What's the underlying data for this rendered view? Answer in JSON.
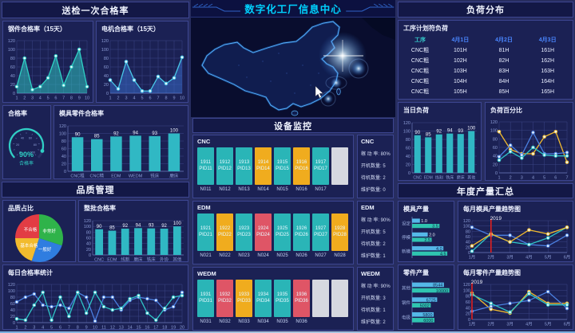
{
  "title": "数字化工厂信息中心",
  "left": {
    "qc_header": "送检一次合格率",
    "steel_title": "钢件合格率（15天）",
    "motor_title": "电机合格率（15天）",
    "gauge_panel_title": "合格率",
    "gauge_value": "90%",
    "gauge_label": "合格率",
    "mould_parts_title": "模具零件合格率",
    "quality_header": "品质管理",
    "pie_title": "品质占比",
    "batch_title": "整批合格率",
    "daily_title": "每日合格率统计"
  },
  "center": {
    "monitor_header": "设备监控",
    "groups": [
      {
        "name": "CNC",
        "machines": [
          {
            "code": "1911",
            "pid": "PID11",
            "node": "N011",
            "status": "run"
          },
          {
            "code": "1912",
            "pid": "PID12",
            "node": "N012",
            "status": "run"
          },
          {
            "code": "1913",
            "pid": "PID13",
            "node": "N013",
            "status": "run"
          },
          {
            "code": "1914",
            "pid": "PID14",
            "node": "N014",
            "status": "standby"
          },
          {
            "code": "1915",
            "pid": "PID15",
            "node": "N015",
            "status": "run"
          },
          {
            "code": "1916",
            "pid": "PID16",
            "node": "N016",
            "status": "standby"
          },
          {
            "code": "1917",
            "pid": "PID17",
            "node": "N017",
            "status": "run"
          },
          {
            "code": "",
            "pid": "",
            "node": "",
            "status": "empty"
          }
        ],
        "stats": {
          "rate_label": "稼 动 率",
          "rate": "80%",
          "on_label": "开机数量",
          "on": "5",
          "standby_label": "待机数量",
          "standby": "2",
          "maint_label": "维护数量",
          "maint": "0"
        }
      },
      {
        "name": "EDM",
        "machines": [
          {
            "code": "1921",
            "pid": "PID21",
            "node": "N021",
            "status": "run"
          },
          {
            "code": "1922",
            "pid": "PID22",
            "node": "N022",
            "status": "standby"
          },
          {
            "code": "1923",
            "pid": "PID23",
            "node": "N023",
            "status": "run"
          },
          {
            "code": "1924",
            "pid": "PID24",
            "node": "N024",
            "status": "fault"
          },
          {
            "code": "1925",
            "pid": "PID25",
            "node": "N025",
            "status": "run"
          },
          {
            "code": "1926",
            "pid": "PID26",
            "node": "N026",
            "status": "run"
          },
          {
            "code": "1927",
            "pid": "PID27",
            "node": "N027",
            "status": "run"
          },
          {
            "code": "1928",
            "pid": "PID28",
            "node": "N028",
            "status": "standby"
          }
        ],
        "stats": {
          "rate_label": "稼 动 率",
          "rate": "90%",
          "on_label": "开机数量",
          "on": "5",
          "standby_label": "待机数量",
          "standby": "2",
          "maint_label": "维护数量",
          "maint": "1"
        }
      },
      {
        "name": "WEDM",
        "machines": [
          {
            "code": "1931",
            "pid": "PID31",
            "node": "N031",
            "status": "run"
          },
          {
            "code": "1932",
            "pid": "PID32",
            "node": "N032",
            "status": "fault"
          },
          {
            "code": "1933",
            "pid": "PID33",
            "node": "N033",
            "status": "standby"
          },
          {
            "code": "1934",
            "pid": "PID34",
            "node": "N034",
            "status": "run"
          },
          {
            "code": "1935",
            "pid": "PID35",
            "node": "N035",
            "status": "run"
          },
          {
            "code": "1936",
            "pid": "PID36",
            "node": "N036",
            "status": "fault"
          },
          {
            "code": "",
            "pid": "",
            "node": "",
            "status": "empty"
          },
          {
            "code": "",
            "pid": "",
            "node": "",
            "status": "empty"
          }
        ],
        "stats": {
          "rate_label": "稼 动 率",
          "rate": "90%",
          "on_label": "开机数量",
          "on": "3",
          "standby_label": "待机数量",
          "standby": "1",
          "maint_label": "维护数量",
          "maint": "2"
        }
      }
    ]
  },
  "right": {
    "load_header": "负荷分布",
    "plan_title": "工序计划符负荷",
    "plan_table": {
      "columns": [
        "工序",
        "4月1日",
        "4月2日",
        "4月3日"
      ],
      "rows": [
        [
          "CNC粗",
          "101H",
          "81H",
          "161H"
        ],
        [
          "CNC粗",
          "102H",
          "82H",
          "162H"
        ],
        [
          "CNC粗",
          "103H",
          "83H",
          "163H"
        ],
        [
          "CNC粗",
          "104H",
          "84H",
          "164H"
        ],
        [
          "CNC粗",
          "105H",
          "85H",
          "165H"
        ]
      ]
    },
    "today_title": "当日负荷",
    "pct_title": "负荷百分比",
    "annual_header": "年度产量汇总",
    "mould_prod_title": "模具产量",
    "mould_trend_title": "每月模具产量趋势图",
    "parts_prod_title": "零件产量",
    "parts_trend_title": "每月零件产量趋势图",
    "trend_year": "2019"
  },
  "status_colors": {
    "run": "#2ab5b7",
    "standby": "#f0ac1e",
    "fault": "#df5566",
    "empty": "#d6d8e0"
  },
  "chart_data": [
    {
      "id": "steel",
      "type": "area",
      "title": "钢件合格率（15天）",
      "x": [
        "1",
        "2",
        "3",
        "4",
        "5",
        "6",
        "7",
        "8",
        "9",
        "10"
      ],
      "ylim": [
        0,
        120
      ],
      "ystep": 20,
      "series": [
        {
          "name": "钢件合格率",
          "color": "#2fd0c5",
          "fill": true,
          "values": [
            15,
            80,
            8,
            15,
            35,
            85,
            18,
            60,
            100,
            15
          ]
        }
      ]
    },
    {
      "id": "motor",
      "type": "area",
      "title": "电机合格率（15天）",
      "x": [
        "1",
        "2",
        "3",
        "4",
        "5",
        "6",
        "7",
        "8",
        "9",
        "10"
      ],
      "ylim": [
        0,
        120
      ],
      "ystep": 20,
      "series": [
        {
          "name": "电机合格率",
          "color": "#49c8e8",
          "fill": true,
          "fill_color": "#3a6fd0",
          "values": [
            30,
            10,
            72,
            30,
            5,
            5,
            38,
            22,
            35,
            82
          ]
        }
      ]
    },
    {
      "id": "gauge",
      "type": "gauge",
      "title": "合格率",
      "value": 90,
      "display": "90%",
      "label": "合格率",
      "color": "#2fd0c5"
    },
    {
      "id": "mould_parts",
      "type": "bar",
      "title": "模具零件合格率",
      "categories": [
        "CNC粗",
        "CNC精",
        "EDM",
        "WEDM",
        "铣床",
        "磨床"
      ],
      "values": [
        90,
        85,
        92,
        94,
        93,
        100
      ],
      "ylim": [
        0,
        120
      ],
      "ystep": 20,
      "color": "#30b8c4"
    },
    {
      "id": "quality_pie",
      "type": "pie",
      "title": "品质占比",
      "slices": [
        {
          "label": "非常好",
          "value": 30,
          "color": "#2fb34a"
        },
        {
          "label": "一般好",
          "value": 25,
          "color": "#2f7de0"
        },
        {
          "label": "基本合格",
          "value": 20,
          "color": "#f2bb2e"
        },
        {
          "label": "不合格",
          "value": 25,
          "color": "#e23c44"
        }
      ]
    },
    {
      "id": "batch",
      "type": "bar",
      "title": "整批合格率",
      "categories": [
        "CNC",
        "EDM",
        "线割",
        "磨床",
        "铣床",
        "外协",
        "其他"
      ],
      "values": [
        90,
        85,
        92,
        94,
        93,
        92,
        100
      ],
      "ylim": [
        0,
        120
      ],
      "ystep": 20,
      "color": "#30b8c4"
    },
    {
      "id": "daily",
      "type": "line",
      "title": "每日合格率统计",
      "x": [
        "1",
        "2",
        "3",
        "4",
        "5",
        "6",
        "7",
        "8",
        "9",
        "10",
        "11",
        "12",
        "13",
        "14",
        "15",
        "16",
        "17",
        "18",
        "19",
        "20"
      ],
      "ylim": [
        0,
        120
      ],
      "ystep": 20,
      "series": [
        {
          "name": "series-blue",
          "color": "#4a7fe0",
          "values": [
            65,
            80,
            90,
            55,
            50,
            55,
            45,
            95,
            80,
            5,
            80,
            80,
            40,
            70,
            80,
            75,
            70,
            40,
            50,
            95
          ]
        },
        {
          "name": "series-teal",
          "color": "#2fc5c7",
          "values": [
            12,
            8,
            55,
            95,
            8,
            80,
            20,
            95,
            30,
            95,
            50,
            40,
            45,
            75,
            85,
            30,
            8,
            45,
            80,
            85
          ]
        }
      ]
    },
    {
      "id": "today_load",
      "type": "bar",
      "title": "当日负荷",
      "categories": [
        "CNC",
        "EDM",
        "线割",
        "铣床",
        "磨床",
        "其他"
      ],
      "values": [
        90,
        85,
        92,
        94,
        93,
        100
      ],
      "ylim": [
        0,
        120
      ],
      "ystep": 20,
      "color": "#30b8c4",
      "xfs": 5
    },
    {
      "id": "load_pct",
      "type": "line",
      "title": "负荷百分比",
      "x": [
        "1",
        "2",
        "3",
        "4",
        "5",
        "6",
        "7"
      ],
      "ylim": [
        0,
        120
      ],
      "ystep": 20,
      "series": [
        {
          "name": "series-yellow",
          "color": "#f2bb2e",
          "values": [
            97,
            55,
            45,
            45,
            85,
            97,
            25
          ]
        },
        {
          "name": "series-blue",
          "color": "#4a7fe0",
          "values": [
            38,
            65,
            42,
            95,
            45,
            45,
            48
          ]
        },
        {
          "name": "series-teal",
          "color": "#2fc5c7",
          "values": [
            30,
            50,
            35,
            60,
            42,
            40,
            40
          ]
        }
      ]
    },
    {
      "id": "mould_prod",
      "type": "hbar",
      "title": "模具产量",
      "categories": [
        "设定",
        "停模",
        "新模"
      ],
      "xmax": 5,
      "decimals": 1,
      "series": [
        {
          "color": "#55b8e8",
          "values": [
            1.0,
            2.0,
            4.0
          ]
        },
        {
          "color": "#2fc5b0",
          "values": [
            3.5,
            2.5,
            4.5
          ]
        }
      ]
    },
    {
      "id": "mould_trend",
      "type": "line",
      "title": "每月模具产量趋势图",
      "x": [
        "1月",
        "2月",
        "3月",
        "4月",
        "5月",
        "6月"
      ],
      "ylim": [
        0,
        120
      ],
      "ystep": 20,
      "vline": 1,
      "vlabel": "2019",
      "series": [
        {
          "name": "series-blue",
          "color": "#4a7fe0",
          "values": [
            95,
            65,
            65,
            30,
            25,
            65
          ]
        },
        {
          "name": "series-teal",
          "color": "#2fc5c7",
          "values": [
            5,
            70,
            40,
            30,
            55,
            95
          ]
        },
        {
          "name": "series-yellow",
          "color": "#f2bb2e",
          "values": [
            25,
            70,
            40,
            85,
            70,
            95
          ]
        }
      ]
    },
    {
      "id": "parts_prod",
      "type": "hbar",
      "title": "零件产量",
      "categories": [
        "其他",
        "钢件",
        "电极"
      ],
      "xmax": 10500,
      "decimals": 0,
      "series": [
        {
          "color": "#55b8e8",
          "values": [
            8544,
            6725,
            5800
          ]
        },
        {
          "color": "#2fc5b0",
          "values": [
            10000,
            5002,
            6000
          ]
        }
      ]
    },
    {
      "id": "parts_trend",
      "type": "line",
      "title": "每月零件产量趋势图",
      "x": [
        "1月",
        "2月",
        "3月",
        "4月",
        "5月",
        "6月"
      ],
      "ylim": [
        0,
        120
      ],
      "ystep": 20,
      "vline": 0,
      "vlabel": "2019",
      "series": [
        {
          "name": "series-yellow",
          "color": "#f2bb2e",
          "values": [
            90,
            35,
            22,
            95,
            55,
            55
          ]
        },
        {
          "name": "series-blue",
          "color": "#4a7fe0",
          "values": [
            28,
            45,
            55,
            65,
            95,
            38
          ]
        },
        {
          "name": "series-teal",
          "color": "#2fc5c7",
          "values": [
            85,
            55,
            25,
            88,
            50,
            50
          ]
        }
      ]
    }
  ]
}
